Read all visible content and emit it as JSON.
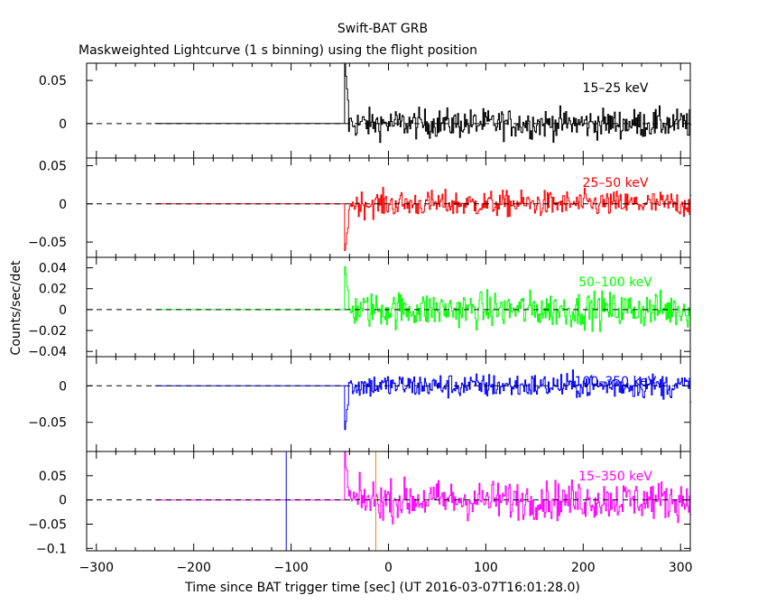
{
  "chart_data": {
    "type": "line",
    "title": "Swift-BAT GRB",
    "subtitle": "Maskweighted Lightcurve (1 s binning) using the flight position",
    "xlabel": "Time since BAT trigger time [sec] (UT 2016-03-07T16:01:28.0)",
    "ylabel": "Counts/sec/det",
    "xlim": [
      -310,
      310
    ],
    "x_ticks": [
      -300,
      -200,
      -100,
      0,
      100,
      200,
      300
    ],
    "data_start": -240,
    "data_end": 310,
    "trigger_onset": -45,
    "vertical_markers": [
      {
        "x": -105,
        "color": "#0000ff"
      },
      {
        "x": -13,
        "color": "#ff8000"
      }
    ],
    "panels": [
      {
        "name": "15-25 keV",
        "label": "15–25 keV",
        "color": "#000000",
        "ylim": [
          -0.04,
          0.07
        ],
        "yticks": [
          0,
          0.05
        ],
        "ytick_labels": [
          "0",
          "0.05"
        ],
        "noise": 0.012,
        "spike": 0.07
      },
      {
        "name": "25-50 keV",
        "label": "25–50 keV",
        "color": "#ff0000",
        "ylim": [
          -0.07,
          0.06
        ],
        "yticks": [
          -0.05,
          0,
          0.05
        ],
        "ytick_labels": [
          "−0.05",
          "0",
          "0.05"
        ],
        "noise": 0.012,
        "spike": -0.065
      },
      {
        "name": "50-100 keV",
        "label": "50–100 keV",
        "color": "#00ff00",
        "ylim": [
          -0.045,
          0.05
        ],
        "yticks": [
          -0.04,
          -0.02,
          0,
          0.02,
          0.04
        ],
        "ytick_labels": [
          "−0.04",
          "−0.02",
          "0",
          "0.02",
          "0.04"
        ],
        "noise": 0.012,
        "spike": 0.04
      },
      {
        "name": "100-350 keV",
        "label": "100–350 keV",
        "color": "#0000ff",
        "ylim": [
          -0.09,
          0.04
        ],
        "yticks": [
          -0.05,
          0
        ],
        "ytick_labels": [
          "−0.05",
          "0"
        ],
        "noise": 0.012,
        "spike": -0.06
      },
      {
        "name": "15-350 keV",
        "label": "15–350 keV",
        "color": "#ff00ff",
        "ylim": [
          -0.105,
          0.1
        ],
        "yticks": [
          -0.1,
          -0.05,
          0,
          0.05
        ],
        "ytick_labels": [
          "−0.1",
          "−0.05",
          "0",
          "0.05"
        ],
        "noise": 0.028,
        "spike": 0.09
      }
    ]
  }
}
